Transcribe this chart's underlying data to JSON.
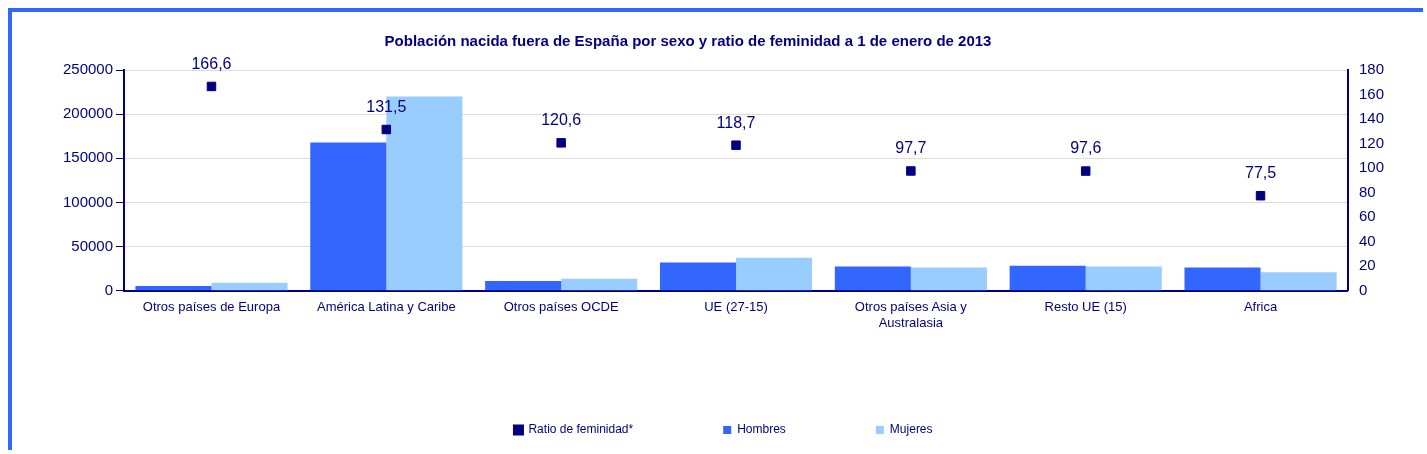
{
  "chart_data": {
    "type": "bar",
    "title": "Población nacida fuera de España por sexo y ratio de feminidad a 1 de enero de 2013",
    "categories": [
      "Otros países de Europa",
      "América Latina y Caribe",
      "Otros países OCDE",
      "UE (27-15)",
      "Otros países Asia y Australasia",
      "Resto UE (15)",
      "Africa"
    ],
    "series": [
      {
        "name": "Hombres",
        "color": "#3366ff",
        "values": [
          5500,
          168000,
          11000,
          32000,
          27400,
          28300,
          26500
        ]
      },
      {
        "name": "Mujeres",
        "color": "#99ccff",
        "values": [
          9000,
          220000,
          13700,
          37400,
          26500,
          27400,
          21000
        ]
      },
      {
        "name": "Ratio de feminidad*",
        "type": "scatter",
        "axis": "y2",
        "color": "#000080",
        "marker": "square",
        "values": [
          166.6,
          131.5,
          120.6,
          118.7,
          97.7,
          97.6,
          77.5
        ],
        "value_labels": [
          "166,6",
          "131,5",
          "120,6",
          "118,7",
          "97,7",
          "97,6",
          "77,5"
        ]
      }
    ],
    "ylim": [
      0,
      250000
    ],
    "yticks": [
      0,
      50000,
      100000,
      150000,
      200000,
      250000
    ],
    "y2lim": [
      0,
      180
    ],
    "y2ticks": [
      0,
      20,
      40,
      60,
      80,
      100,
      120,
      140,
      160,
      180
    ],
    "grid": "y",
    "legend": "bottom"
  }
}
